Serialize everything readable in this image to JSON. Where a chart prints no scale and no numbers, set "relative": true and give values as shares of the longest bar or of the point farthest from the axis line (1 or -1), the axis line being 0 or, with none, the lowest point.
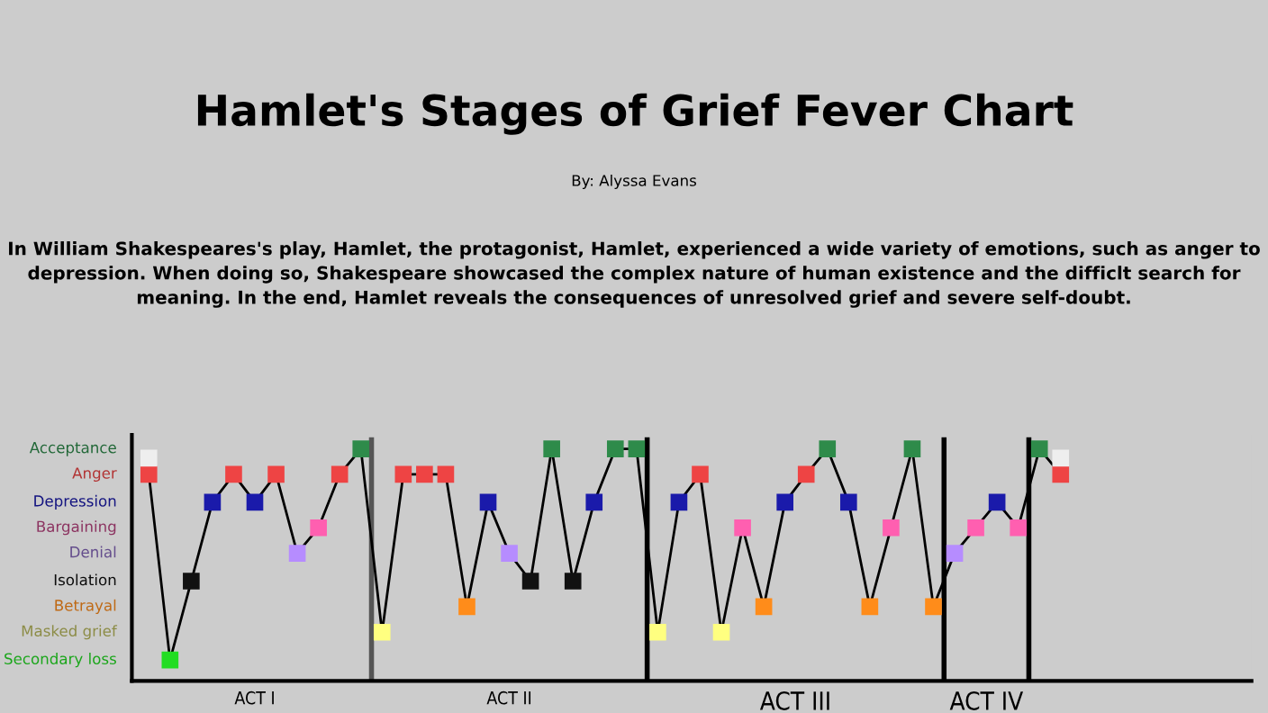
{
  "chart_data": {
    "type": "line",
    "title": "Hamlet's Stages of Grief Fever Chart",
    "subtitle": "By: Alyssa Evans",
    "annotations": [
      "In William Shakespeares's play, Hamlet, the protagonist, Hamlet, experienced a wide variety of emotions, such as anger to depression. When doing so, Shakespeare showcased the complex nature of human existence and the difficlt search for meaning. In the end, Hamlet reveals the consequences of unresolved grief and severe self-doubt.",
      "Acceptance",
      "Anger",
      "Depression",
      "Bargaining",
      "Denial",
      "Isolation",
      "Betrayal",
      "Masked grief",
      "Secondary loss",
      "ACT I",
      "ACT II",
      "ACT III",
      "ACT IV"
    ],
    "relative": true,
    "categories": [
      null,
      null,
      null,
      null,
      null,
      null,
      null,
      null,
      null,
      null,
      null,
      null,
      null,
      null,
      null,
      null,
      null,
      null,
      null,
      null,
      null,
      null,
      null,
      null,
      null,
      null,
      null,
      null,
      null,
      null,
      null,
      null,
      null,
      null,
      null,
      null,
      null,
      null,
      null,
      null,
      null,
      null,
      null,
      null
    ],
    "series": [
      {
        "color": "#000000",
        "marker": "square",
        "values": [
          0.89,
          0.09,
          0.43,
          0.77,
          0.89,
          0.77,
          0.89,
          0.55,
          0.66,
          0.89,
          1,
          0.21,
          0.89,
          0.89,
          0.89,
          0.32,
          0.77,
          0.55,
          0.43,
          1,
          0.43,
          0.77,
          1,
          1,
          0.21,
          0.77,
          0.89,
          0.21,
          0.66,
          0.32,
          0.77,
          0.89,
          1,
          0.77,
          0.32,
          0.66,
          1,
          0.32,
          0.55,
          0.66,
          0.77,
          0.66,
          1,
          0.89
        ],
        "colors": [
          "#ee4444",
          "#22dd22",
          "#111111",
          "#1a1aaa",
          "#ee4444",
          "#1a1aaa",
          "#ee4444",
          "#b68cff",
          "#ff5fb0",
          "#ee4444",
          "#2e8b4a",
          "#ffff80",
          "#ee4444",
          "#ee4444",
          "#ee4444",
          "#ff8c1a",
          "#1a1aaa",
          "#b68cff",
          "#111111",
          "#2e8b4a",
          "#111111",
          "#1a1aaa",
          "#2e8b4a",
          "#2e8b4a",
          "#ffff80",
          "#1a1aaa",
          "#ee4444",
          "#ffff80",
          "#ff5fb0",
          "#ff8c1a",
          "#1a1aaa",
          "#ee4444",
          "#2e8b4a",
          "#1a1aaa",
          "#ff8c1a",
          "#ff5fb0",
          "#2e8b4a",
          "#ff8c1a",
          "#b68cff",
          "#ff5fb0",
          "#1a1aaa",
          "#ff5fb0",
          "#2e8b4a",
          "#ee4444"
        ]
      }
    ],
    "legend": false
  }
}
